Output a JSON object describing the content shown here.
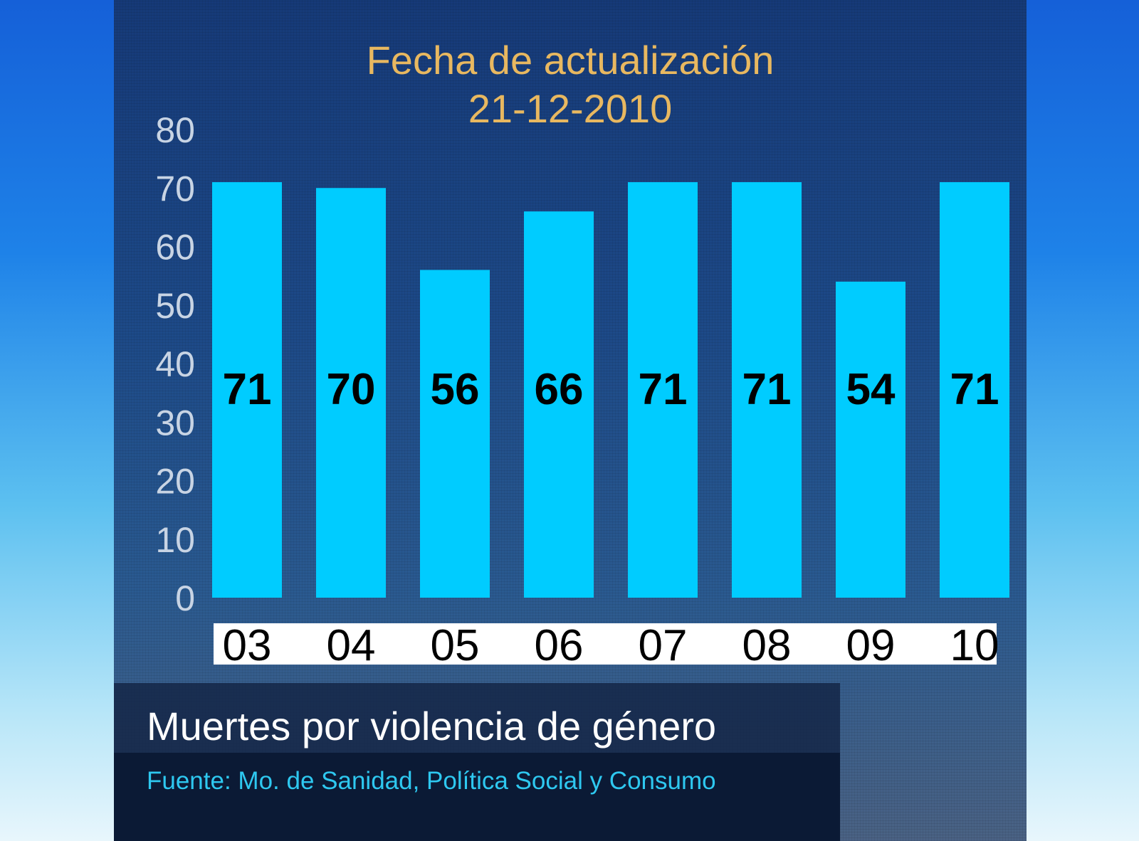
{
  "chart_data": {
    "type": "bar",
    "title": "Fecha de actualización",
    "subtitle": "21-12-2010",
    "categories": [
      "03",
      "04",
      "05",
      "06",
      "07",
      "08",
      "09",
      "10"
    ],
    "values": [
      71,
      70,
      56,
      66,
      71,
      71,
      54,
      71
    ],
    "yticks": [
      "0",
      "10",
      "20",
      "30",
      "40",
      "50",
      "60",
      "70",
      "80"
    ],
    "ylim": [
      0,
      80
    ],
    "grid": false,
    "bar_color": "#00ccff",
    "caption": "Muertes por violencia de género",
    "source": "Fuente: Mo. de Sanidad, Política Social y Consumo"
  }
}
